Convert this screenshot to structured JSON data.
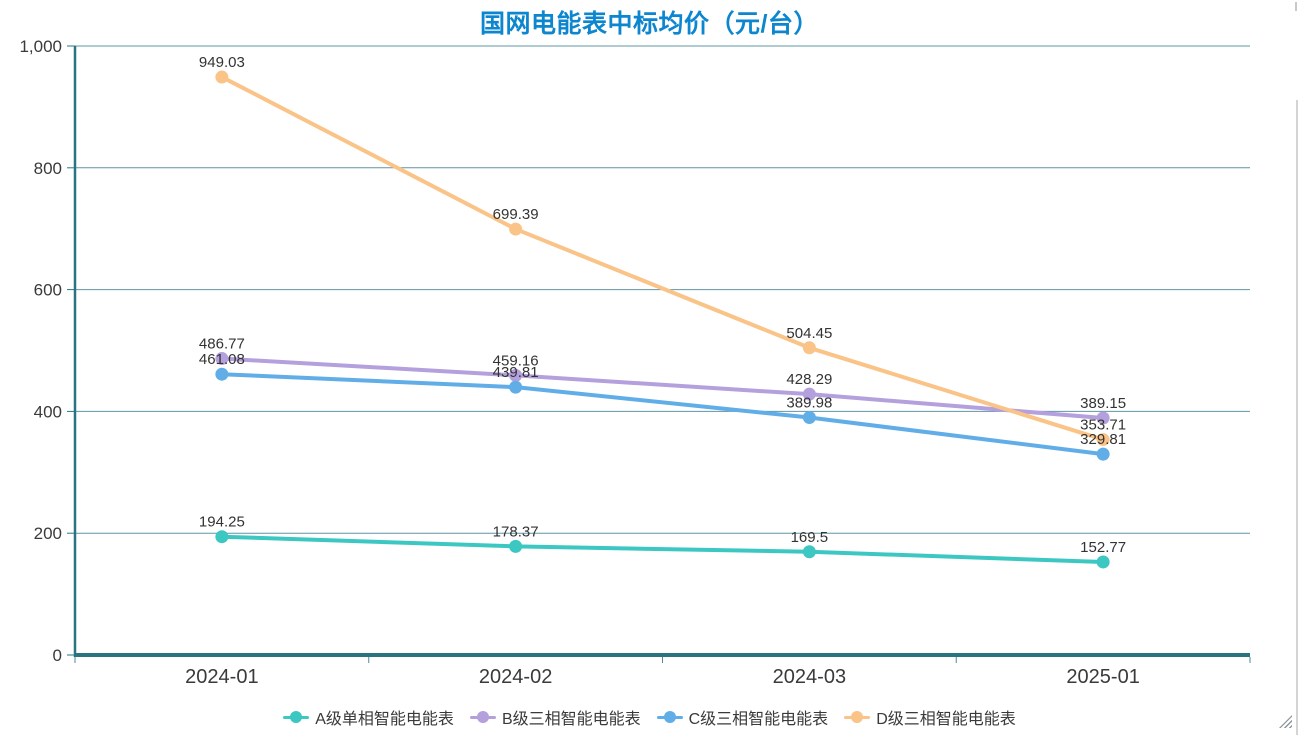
{
  "chart_data": {
    "type": "line",
    "title": "国网电能表中标均价（元/台）",
    "title_color": "#0c86cf",
    "categories": [
      "2024-01",
      "2024-02",
      "2024-03",
      "2025-01"
    ],
    "series": [
      {
        "name": "A级单相智能电能表",
        "color": "#3cc7c2",
        "values": [
          194.25,
          178.37,
          169.5,
          152.77
        ]
      },
      {
        "name": "B级三相智能电能表",
        "color": "#b3a0dd",
        "values": [
          486.77,
          459.16,
          428.29,
          389.15
        ]
      },
      {
        "name": "C级三相智能电能表",
        "color": "#61ade8",
        "values": [
          461.08,
          439.81,
          389.98,
          329.81
        ]
      },
      {
        "name": "D级三相智能电能表",
        "color": "#fac387",
        "values": [
          949.03,
          699.39,
          504.45,
          353.71
        ]
      }
    ],
    "ylim": [
      0,
      1000
    ],
    "ytick_interval": 200,
    "ytick_labels": [
      "0",
      "200",
      "400",
      "600",
      "800",
      "1,000"
    ],
    "grid": true,
    "legend_position": "bottom",
    "colors": {
      "axis": "#2a7482",
      "gridline": "#6094a6",
      "x_tick": "#4d8a9a",
      "tick_label": "#3a3a3a",
      "data_label": "#333333"
    }
  }
}
